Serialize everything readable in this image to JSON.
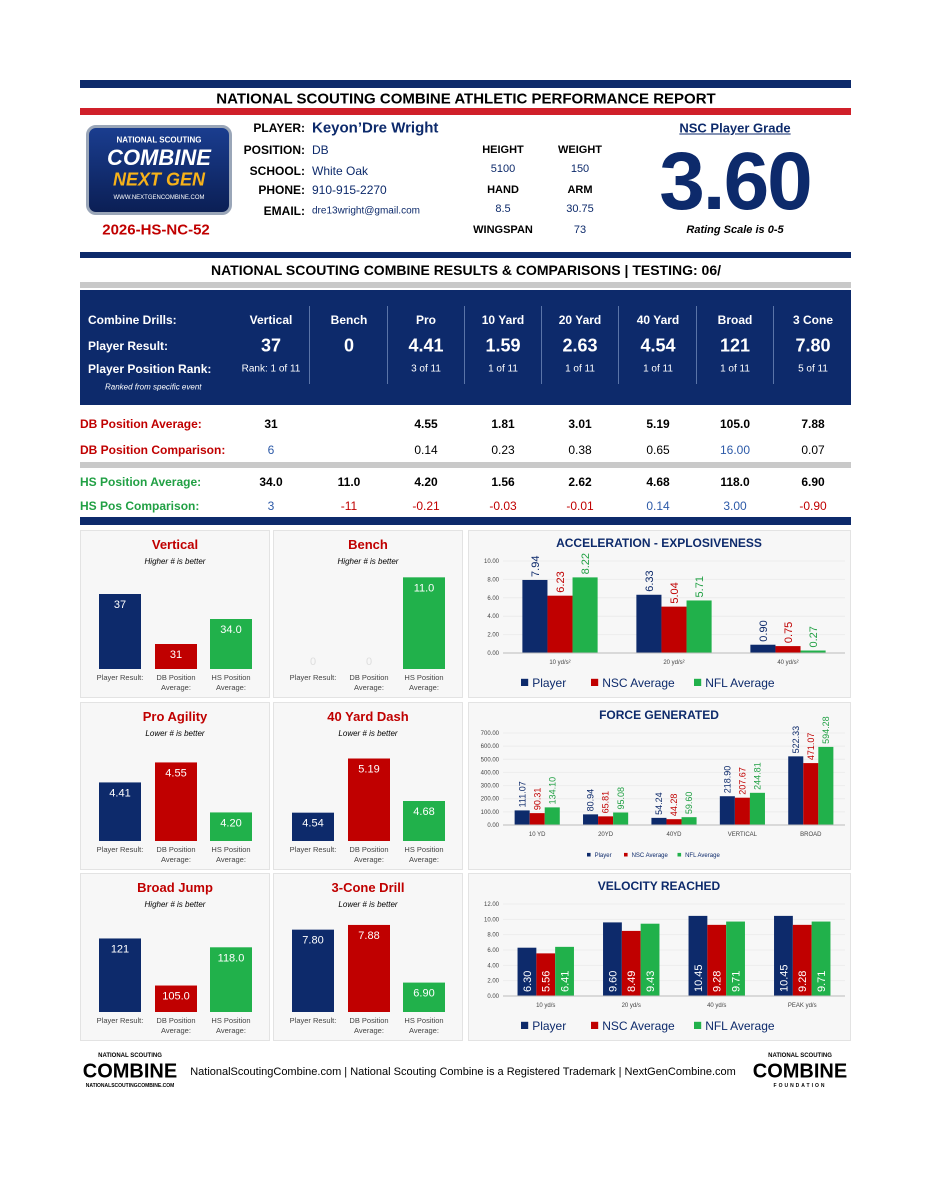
{
  "header": {
    "title": "NATIONAL SCOUTING COMBINE ATHLETIC PERFORMANCE REPORT"
  },
  "logo": {
    "line1": "NATIONAL SCOUTING",
    "line2": "COMBINE",
    "line3": "NEXT GEN",
    "url": "WWW.NEXTGENCOMBINE.COM"
  },
  "player_id": "2026-HS-NC-52",
  "player": {
    "fields": [
      {
        "label": "PLAYER:",
        "value": "Keyon’Dre Wright"
      },
      {
        "label": "POSITION:",
        "value": "DB"
      },
      {
        "label": "SCHOOL:",
        "value": "White Oak"
      },
      {
        "label": "PHONE:",
        "value": "910-915-2270"
      },
      {
        "label": "EMAIL:",
        "value": "dre13wright@gmail.com"
      }
    ]
  },
  "measurements": [
    {
      "label": "HEIGHT",
      "value": "5100"
    },
    {
      "label": "WEIGHT",
      "value": "150"
    },
    {
      "label": "HAND",
      "value": "8.5"
    },
    {
      "label": "ARM",
      "value": "30.75"
    },
    {
      "label": "WINGSPAN",
      "value": "73"
    }
  ],
  "grade": {
    "title": "NSC Player Grade",
    "value": "3.60",
    "scale": "Rating Scale is 0-5"
  },
  "results": {
    "title": "NATIONAL SCOUTING COMBINE RESULTS & COMPARISONS | TESTING: 06/",
    "note": "Ranked from specific event",
    "rows": [
      {
        "label": "Combine Drills:",
        "cells": [
          "Vertical",
          "Bench",
          "Pro",
          "10 Yard",
          "20 Yard",
          "40 Yard",
          "Broad",
          "3 Cone"
        ]
      },
      {
        "label": "Player Result:",
        "cells": [
          "37",
          "0",
          "4.41",
          "1.59",
          "2.63",
          "4.54",
          "121",
          "7.80"
        ]
      },
      {
        "label": "Player Position Rank:",
        "cells": [
          "Rank: 1 of 11",
          null,
          "3 of 11",
          "1 of 11",
          "1 of 11",
          "1 of 11",
          "1 of 11",
          "5 of 11"
        ]
      },
      {
        "label": "DB Position Average:",
        "cells": [
          "31",
          null,
          "4.55",
          "1.81",
          "3.01",
          "5.19",
          "105.0",
          "7.88"
        ]
      },
      {
        "label": "DB Position Comparison:",
        "cells": [
          "6",
          null,
          "0.14",
          "0.23",
          "0.38",
          "0.65",
          "16.00",
          "0.07"
        ]
      },
      {
        "label": "HS Position Average:",
        "cells": [
          "34.0",
          "11.0",
          "4.20",
          "1.56",
          "2.62",
          "4.68",
          "118.0",
          "6.90"
        ]
      },
      {
        "label": "HS Pos Comparison:",
        "cells": [
          "3",
          "-11",
          "-0.21",
          "-0.03",
          "-0.01",
          "0.14",
          "3.00",
          "-0.90"
        ]
      }
    ]
  },
  "small_charts": [
    {
      "type": "bar",
      "title": "Vertical",
      "subtitle": "Higher # is better",
      "categories": [
        "Player Result:",
        "DB Position Average:",
        "HS Position Average:"
      ],
      "values": [
        37,
        31,
        34.0
      ],
      "value_labels": [
        "37",
        "31",
        "34.0"
      ],
      "colors": [
        "#0d2a6b",
        "#c00000",
        "#21b14b"
      ],
      "ylim": [
        28,
        40
      ]
    },
    {
      "type": "bar",
      "title": "Bench",
      "subtitle": "Higher # is better",
      "categories": [
        "Player Result:",
        "DB Position Average:",
        "HS Position Average:"
      ],
      "values": [
        0,
        0,
        11.0
      ],
      "value_labels": [
        "0",
        "0",
        "11.0"
      ],
      "colors": [
        "#0d2a6b",
        "#c00000",
        "#21b14b"
      ],
      "ylim": [
        0,
        12
      ]
    },
    {
      "type": "bar",
      "title": "Pro Agility",
      "subtitle": "Lower # is better",
      "categories": [
        "Player Result:",
        "DB Position Average:",
        "HS Position Average:"
      ],
      "values": [
        4.41,
        4.55,
        4.2
      ],
      "value_labels": [
        "4.41",
        "4.55",
        "4.20"
      ],
      "colors": [
        "#0d2a6b",
        "#c00000",
        "#21b14b"
      ],
      "ylim": [
        4.0,
        4.7
      ]
    },
    {
      "type": "bar",
      "title": "40 Yard Dash",
      "subtitle": "Lower # is better",
      "categories": [
        "Player Result:",
        "DB Position Average:",
        "HS Position Average:"
      ],
      "values": [
        4.54,
        5.19,
        4.68
      ],
      "value_labels": [
        "4.54",
        "5.19",
        "4.68"
      ],
      "colors": [
        "#0d2a6b",
        "#c00000",
        "#21b14b"
      ],
      "ylim": [
        4.2,
        5.4
      ]
    },
    {
      "type": "bar",
      "title": "Broad Jump",
      "subtitle": "Higher # is better",
      "categories": [
        "Player Result:",
        "DB Position Average:",
        "HS Position Average:"
      ],
      "values": [
        121,
        105.0,
        118.0
      ],
      "value_labels": [
        "121",
        "105.0",
        "118.0"
      ],
      "colors": [
        "#0d2a6b",
        "#c00000",
        "#21b14b"
      ],
      "ylim": [
        96,
        130
      ]
    },
    {
      "type": "bar",
      "title": "3-Cone Drill",
      "subtitle": "Lower # is better",
      "categories": [
        "Player Result:",
        "DB Position Average:",
        "HS Position Average:"
      ],
      "values": [
        7.8,
        7.88,
        6.9
      ],
      "value_labels": [
        "7.80",
        "7.88",
        "6.90"
      ],
      "colors": [
        "#0d2a6b",
        "#c00000",
        "#21b14b"
      ],
      "ylim": [
        6.4,
        8.1
      ]
    }
  ],
  "big_charts": [
    {
      "type": "bar",
      "title": "ACCELERATION - EXPLOSIVENESS",
      "categories": [
        "10 yd/s²",
        "20 yd/s²",
        "40 yd/s²"
      ],
      "value_label_position": "above",
      "series": [
        {
          "name": "Player",
          "color": "#0d2a6b",
          "values": [
            7.94,
            6.33,
            0.9
          ],
          "value_labels": [
            "7.94",
            "6.33",
            "0.90"
          ]
        },
        {
          "name": "NSC Average",
          "color": "#c00000",
          "values": [
            6.23,
            5.04,
            0.75
          ],
          "value_labels": [
            "6.23",
            "5.04",
            "0.75"
          ]
        },
        {
          "name": "NFL Average",
          "color": "#21b14b",
          "values": [
            8.22,
            5.71,
            0.27
          ],
          "value_labels": [
            "8.22",
            "5.71",
            "0.27"
          ]
        }
      ],
      "ylim": [
        0,
        10
      ],
      "yticks": [
        {
          "value": 0,
          "label": "0.00"
        },
        {
          "value": 2,
          "label": "2.00"
        },
        {
          "value": 4,
          "label": "4.00"
        },
        {
          "value": 6,
          "label": "6.00"
        },
        {
          "value": 8,
          "label": "8.00"
        },
        {
          "value": 10,
          "label": "10.00"
        }
      ]
    },
    {
      "type": "bar",
      "title": "FORCE GENERATED",
      "categories": [
        "10 YD",
        "20YD",
        "40YD",
        "VERTICAL",
        "BROAD"
      ],
      "value_label_position": "above",
      "series": [
        {
          "name": "Player",
          "color": "#0d2a6b",
          "values": [
            111.07,
            80.94,
            54.24,
            218.9,
            522.33
          ],
          "value_labels": [
            "111.07",
            "80.94",
            "54.24",
            "218.90",
            "522.33"
          ]
        },
        {
          "name": "NSC Average",
          "color": "#c00000",
          "values": [
            90.31,
            65.81,
            44.28,
            207.67,
            471.07
          ],
          "value_labels": [
            "90.31",
            "65.81",
            "44.28",
            "207.67",
            "471.07"
          ]
        },
        {
          "name": "NFL Average",
          "color": "#21b14b",
          "values": [
            134.1,
            95.08,
            59.6,
            244.81,
            594.28
          ],
          "value_labels": [
            "134.10",
            "95.08",
            "59.60",
            "244.81",
            "594.28"
          ]
        }
      ],
      "ylim": [
        0,
        700
      ],
      "yticks": [
        {
          "value": 0,
          "label": "0.00"
        },
        {
          "value": 100,
          "label": "100.00"
        },
        {
          "value": 200,
          "label": "200.00"
        },
        {
          "value": 300,
          "label": "300.00"
        },
        {
          "value": 400,
          "label": "400.00"
        },
        {
          "value": 500,
          "label": "500.00"
        },
        {
          "value": 600,
          "label": "600.00"
        },
        {
          "value": 700,
          "label": "700.00"
        }
      ]
    },
    {
      "type": "bar",
      "title": "VELOCITY REACHED",
      "categories": [
        "10 yd/s",
        "20 yd/s",
        "40 yd/s",
        "PEAK yd/s"
      ],
      "value_label_position": "inside",
      "series": [
        {
          "name": "Player",
          "color": "#0d2a6b",
          "values": [
            6.3,
            9.6,
            10.45,
            10.45
          ],
          "value_labels": [
            "6.30",
            "9.60",
            "10.45",
            "10.45"
          ]
        },
        {
          "name": "NSC Average",
          "color": "#c00000",
          "values": [
            5.56,
            8.49,
            9.28,
            9.28
          ],
          "value_labels": [
            "5.56",
            "8.49",
            "9.28",
            "9.28"
          ]
        },
        {
          "name": "NFL Average",
          "color": "#21b14b",
          "values": [
            6.41,
            9.43,
            9.71,
            9.71
          ],
          "value_labels": [
            "6.41",
            "9.43",
            "9.71",
            "9.71"
          ]
        }
      ],
      "ylim": [
        0,
        12
      ],
      "yticks": [
        {
          "value": 0,
          "label": "0.00"
        },
        {
          "value": 2,
          "label": "2.00"
        },
        {
          "value": 4,
          "label": "4.00"
        },
        {
          "value": 6,
          "label": "6.00"
        },
        {
          "value": 8,
          "label": "8.00"
        },
        {
          "value": 10,
          "label": "10.00"
        },
        {
          "value": 12,
          "label": "12.00"
        }
      ]
    }
  ],
  "footer": {
    "text": "NationalScoutingCombine.com | National Scouting Combine is a Registered Trademark | NextGenCombine.com",
    "left_logo": {
      "top": "NATIONAL SCOUTING",
      "name": "COMBINE",
      "url": "NATIONALSCOUTINGCOMBINE.COM"
    },
    "right_logo": {
      "top": "NATIONAL SCOUTING",
      "name": "COMBINE",
      "sub": "FOUNDATION"
    }
  }
}
